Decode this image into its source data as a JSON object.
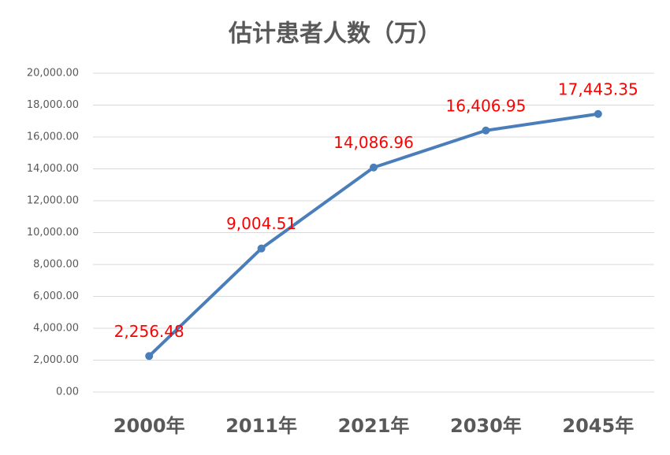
{
  "chart_data": {
    "type": "line",
    "title": "估计患者人数（万）",
    "categories": [
      "2000年",
      "2011年",
      "2021年",
      "2030年",
      "2045年"
    ],
    "series": [
      {
        "name": "估计患者人数",
        "color": "#4a7ebb",
        "values": [
          2256.48,
          9004.51,
          14086.96,
          16406.95,
          17443.35
        ],
        "value_labels": [
          "2,256.48",
          "9,004.51",
          "14,086.96",
          "16,406.95",
          "17,443.35"
        ]
      }
    ],
    "ylim": [
      0,
      20000
    ],
    "yticks": [
      {
        "value": 0,
        "label": "0.00"
      },
      {
        "value": 2000,
        "label": "2,000.00"
      },
      {
        "value": 4000,
        "label": "4,000.00"
      },
      {
        "value": 6000,
        "label": "6,000.00"
      },
      {
        "value": 8000,
        "label": "8,000.00"
      },
      {
        "value": 10000,
        "label": "10,000.00"
      },
      {
        "value": 12000,
        "label": "12,000.00"
      },
      {
        "value": 14000,
        "label": "14,000.00"
      },
      {
        "value": 16000,
        "label": "16,000.00"
      },
      {
        "value": 18000,
        "label": "18,000.00"
      },
      {
        "value": 20000,
        "label": "20,000.00"
      }
    ],
    "grid": true
  }
}
